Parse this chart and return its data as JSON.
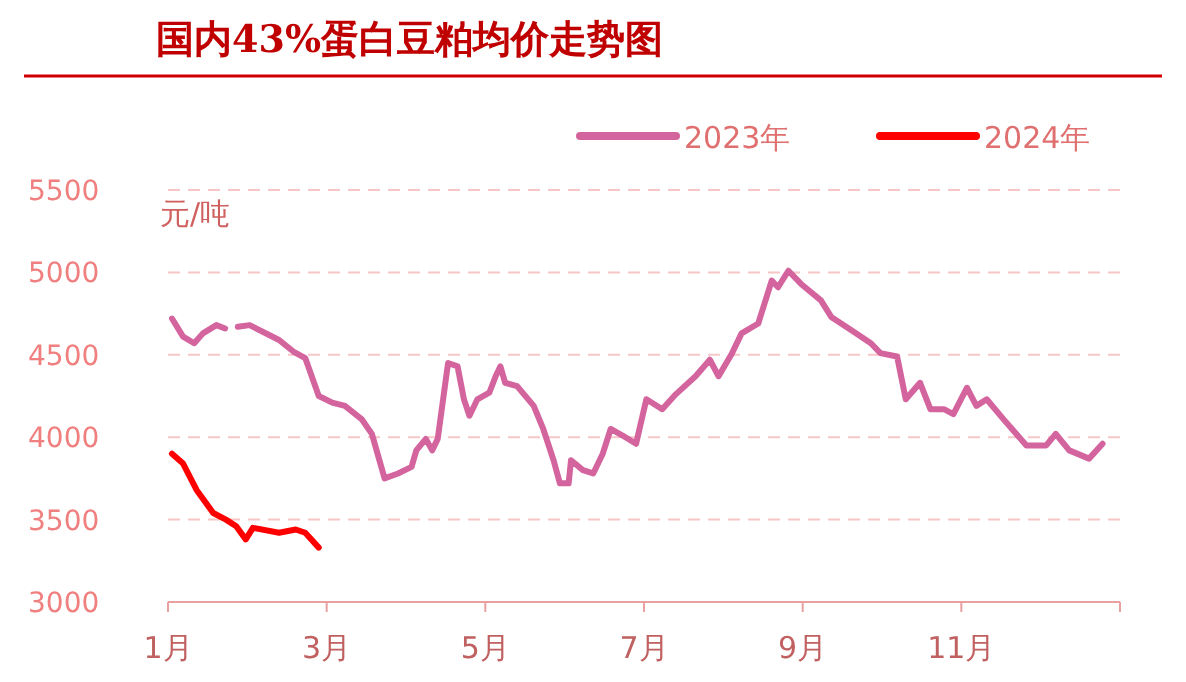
{
  "chart_data": {
    "type": "line",
    "title": "国内43%蛋白豆粕均价走势图",
    "ylabel": "元/吨",
    "xlim": [
      1,
      13
    ],
    "xticks": [
      {
        "value": 1,
        "label": "1月"
      },
      {
        "value": 3,
        "label": "3月"
      },
      {
        "value": 5,
        "label": "5月"
      },
      {
        "value": 7,
        "label": "7月"
      },
      {
        "value": 9,
        "label": "9月"
      },
      {
        "value": 11,
        "label": "11月"
      },
      {
        "value": 13,
        "label": null
      }
    ],
    "ylim": [
      3000,
      5500
    ],
    "yticks": [
      3000,
      3500,
      4000,
      4500,
      5000,
      5500
    ],
    "grid": "y",
    "legend": "top right",
    "line_style": "solid",
    "marker": "none",
    "series": [
      {
        "name": "2023年",
        "color": "#d4649e",
        "x": [
          1.05,
          1.19,
          1.33,
          1.44,
          1.61,
          1.72,
          1.8,
          1.88,
          2.03,
          2.4,
          2.58,
          2.73,
          2.9,
          3.07,
          3.23,
          3.44,
          3.57,
          3.73,
          3.9,
          4.07,
          4.13,
          4.25,
          4.33,
          4.4,
          4.53,
          4.65,
          4.73,
          4.8,
          4.9,
          5.05,
          5.13,
          5.19,
          5.25,
          5.4,
          5.61,
          5.73,
          5.86,
          5.94,
          6.05,
          6.08,
          6.23,
          6.36,
          6.48,
          6.58,
          6.73,
          6.9,
          7.03,
          7.23,
          7.4,
          7.65,
          7.83,
          7.94,
          8.11,
          8.23,
          8.44,
          8.61,
          8.69,
          8.82,
          8.98,
          9.23,
          9.36,
          9.61,
          9.86,
          9.98,
          10.19,
          10.3,
          10.48,
          10.61,
          10.78,
          10.9,
          11.07,
          11.19,
          11.32,
          11.53,
          11.82,
          12.07,
          12.19,
          12.36,
          12.61,
          12.78
        ],
        "values": [
          4720,
          4610,
          4570,
          4630,
          4680,
          4660,
          null,
          4670,
          4680,
          4590,
          4520,
          4480,
          4250,
          4210,
          4190,
          4110,
          4020,
          3750,
          3780,
          3820,
          3920,
          3990,
          3920,
          3990,
          4450,
          4430,
          4230,
          4130,
          4230,
          4270,
          4370,
          4430,
          4330,
          4310,
          4190,
          4050,
          3860,
          3720,
          3720,
          3860,
          3800,
          3780,
          3900,
          4050,
          4010,
          3960,
          4230,
          4170,
          4260,
          4370,
          4470,
          4370,
          4510,
          4630,
          4690,
          4950,
          4910,
          5010,
          4930,
          4830,
          4730,
          4650,
          4570,
          4510,
          4490,
          4230,
          4330,
          4170,
          4170,
          4140,
          4300,
          4190,
          4230,
          4110,
          3950,
          3950,
          4020,
          3920,
          3870,
          3960
        ]
      },
      {
        "name": "2024年",
        "color": "#ff0000",
        "x": [
          1.05,
          1.19,
          1.36,
          1.57,
          1.73,
          1.86,
          1.98,
          2.07,
          2.4,
          2.61,
          2.73,
          2.9
        ],
        "values": [
          3900,
          3840,
          3680,
          3540,
          3500,
          3460,
          3380,
          3450,
          3420,
          3440,
          3420,
          3330
        ]
      }
    ]
  }
}
